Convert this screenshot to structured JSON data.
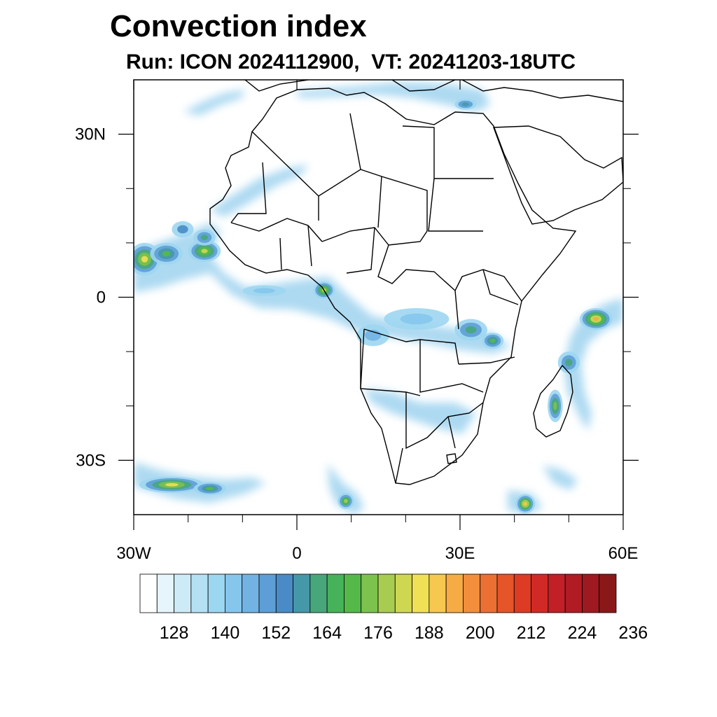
{
  "title": "Convection index",
  "subtitle_run_label": "Run:",
  "subtitle_model": "ICON",
  "subtitle_run_time": "2024112900,",
  "subtitle_vt_label": "VT:",
  "subtitle_valid_time": "20241203-18UTC",
  "map": {
    "lon_range": [
      -30,
      60
    ],
    "lat_range": [
      -40,
      40
    ],
    "lon_ticks": [
      {
        "value": -30,
        "label": "30W"
      },
      {
        "value": 0,
        "label": "0"
      },
      {
        "value": 30,
        "label": "30E"
      },
      {
        "value": 60,
        "label": "60E"
      }
    ],
    "lat_ticks": [
      {
        "value": 30,
        "label": "30N"
      },
      {
        "value": 0,
        "label": "0"
      },
      {
        "value": -30,
        "label": "30S"
      }
    ],
    "minor_lon_ticks": [
      -20,
      -10,
      10,
      20,
      40,
      50
    ],
    "minor_lat_ticks": [
      20,
      10,
      -10,
      -20
    ]
  },
  "colorbar": {
    "colors": [
      "#ffffff",
      "#e6f4fb",
      "#cdeaf7",
      "#b5e0f4",
      "#9dd6f1",
      "#86c6ec",
      "#73b3e3",
      "#5e9ed6",
      "#4a8bc7",
      "#4598a8",
      "#47a77b",
      "#46b35a",
      "#55b94a",
      "#7cc24d",
      "#a7cc50",
      "#cfd752",
      "#f0e056",
      "#f7c84f",
      "#f6ab45",
      "#f28e3c",
      "#ec6f33",
      "#e65429",
      "#dd3b24",
      "#d12a26",
      "#c21f27",
      "#b01b24",
      "#9e1a20",
      "#8a1818"
    ],
    "labels": [
      "128",
      "140",
      "152",
      "164",
      "176",
      "188",
      "200",
      "212",
      "224",
      "236"
    ]
  },
  "cells": [
    {
      "lon": -28,
      "lat": 7,
      "rx": 3,
      "ry": 3,
      "level": 16
    },
    {
      "lon": -24,
      "lat": 8,
      "rx": 3,
      "ry": 2,
      "level": 12
    },
    {
      "lon": -17,
      "lat": 8.5,
      "rx": 3,
      "ry": 2,
      "level": 15
    },
    {
      "lon": -17,
      "lat": 11,
      "rx": 2,
      "ry": 1.5,
      "level": 10
    },
    {
      "lon": -21,
      "lat": 12.5,
      "rx": 2,
      "ry": 1.5,
      "level": 8
    },
    {
      "lon": 5,
      "lat": 1.3,
      "rx": 2,
      "ry": 1.6,
      "level": 15
    },
    {
      "lon": -6,
      "lat": 1.2,
      "rx": 4,
      "ry": 1,
      "level": 5
    },
    {
      "lon": 14,
      "lat": -7,
      "rx": 3,
      "ry": 2,
      "level": 6
    },
    {
      "lon": 22,
      "lat": -4,
      "rx": 6,
      "ry": 2,
      "level": 5
    },
    {
      "lon": 32,
      "lat": -6,
      "rx": 3,
      "ry": 2,
      "level": 10
    },
    {
      "lon": 36,
      "lat": -8,
      "rx": 2,
      "ry": 1.5,
      "level": 12
    },
    {
      "lon": 55,
      "lat": -4,
      "rx": 3,
      "ry": 2,
      "level": 18
    },
    {
      "lon": 50,
      "lat": -12,
      "rx": 2,
      "ry": 2,
      "level": 10
    },
    {
      "lon": 47.5,
      "lat": -20,
      "rx": 1.4,
      "ry": 3,
      "level": 13
    },
    {
      "lon": -23,
      "lat": -34.5,
      "rx": 6,
      "ry": 1.5,
      "level": 16
    },
    {
      "lon": -16,
      "lat": -35.2,
      "rx": 3,
      "ry": 1.2,
      "level": 12
    },
    {
      "lon": 9,
      "lat": -37.5,
      "rx": 1.5,
      "ry": 1.5,
      "level": 14
    },
    {
      "lon": 42,
      "lat": -38,
      "rx": 1.8,
      "ry": 1.8,
      "level": 17
    },
    {
      "lon": 31,
      "lat": 35.5,
      "rx": 2,
      "ry": 1,
      "level": 9
    }
  ]
}
